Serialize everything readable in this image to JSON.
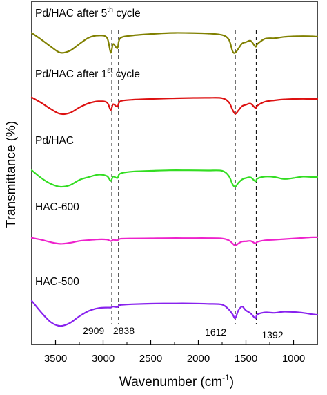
{
  "chart_data": {
    "type": "line",
    "xlabel": "Wavenumber (cm",
    "xlabel_sup": "-1",
    "xlabel_suffix": ")",
    "ylabel": "Transmittance (%)",
    "xlim": [
      3750,
      750
    ],
    "x_reversed": true,
    "x_ticks": [
      3500,
      3000,
      2500,
      2000,
      1500,
      1000
    ],
    "y_ticks": false,
    "grid": false,
    "legend": "none",
    "series": [
      {
        "label_parts": [
          "Pd/HAC after 5",
          "th",
          " cycle"
        ],
        "color": "#808000",
        "offset": 0,
        "points": [
          [
            3750,
            0.2
          ],
          [
            3650,
            0.45
          ],
          [
            3550,
            0.72
          ],
          [
            3450,
            0.95
          ],
          [
            3350,
            0.88
          ],
          [
            3250,
            0.62
          ],
          [
            3150,
            0.38
          ],
          [
            3050,
            0.3
          ],
          [
            2960,
            0.38
          ],
          [
            2920,
            0.95
          ],
          [
            2895,
            0.62
          ],
          [
            2850,
            0.78
          ],
          [
            2820,
            0.4
          ],
          [
            2700,
            0.3
          ],
          [
            2500,
            0.24
          ],
          [
            2300,
            0.2
          ],
          [
            2100,
            0.2
          ],
          [
            1900,
            0.22
          ],
          [
            1750,
            0.28
          ],
          [
            1680,
            0.45
          ],
          [
            1640,
            0.9
          ],
          [
            1612,
            0.95
          ],
          [
            1580,
            0.8
          ],
          [
            1540,
            0.6
          ],
          [
            1500,
            0.55
          ],
          [
            1450,
            0.5
          ],
          [
            1400,
            0.72
          ],
          [
            1380,
            0.62
          ],
          [
            1300,
            0.42
          ],
          [
            1200,
            0.4
          ],
          [
            1100,
            0.35
          ],
          [
            1000,
            0.33
          ],
          [
            900,
            0.32
          ],
          [
            800,
            0.33
          ],
          [
            750,
            0.34
          ]
        ]
      },
      {
        "label_parts": [
          "Pd/HAC after 1",
          "st",
          " cycle"
        ],
        "color": "#dd1111",
        "offset": 1,
        "points": [
          [
            3750,
            0.1
          ],
          [
            3650,
            0.38
          ],
          [
            3550,
            0.7
          ],
          [
            3450,
            0.95
          ],
          [
            3350,
            0.9
          ],
          [
            3250,
            0.62
          ],
          [
            3150,
            0.4
          ],
          [
            3050,
            0.3
          ],
          [
            2960,
            0.36
          ],
          [
            2920,
            0.75
          ],
          [
            2895,
            0.45
          ],
          [
            2850,
            0.58
          ],
          [
            2820,
            0.3
          ],
          [
            2700,
            0.22
          ],
          [
            2500,
            0.18
          ],
          [
            2300,
            0.15
          ],
          [
            2100,
            0.13
          ],
          [
            1900,
            0.12
          ],
          [
            1750,
            0.14
          ],
          [
            1680,
            0.35
          ],
          [
            1640,
            0.75
          ],
          [
            1612,
            0.95
          ],
          [
            1580,
            0.78
          ],
          [
            1540,
            0.55
          ],
          [
            1500,
            0.48
          ],
          [
            1450,
            0.42
          ],
          [
            1400,
            0.65
          ],
          [
            1380,
            0.52
          ],
          [
            1300,
            0.32
          ],
          [
            1200,
            0.25
          ],
          [
            1100,
            0.2
          ],
          [
            1000,
            0.18
          ],
          [
            900,
            0.17
          ],
          [
            800,
            0.18
          ],
          [
            750,
            0.18
          ]
        ]
      },
      {
        "label_parts": [
          "Pd/HAC",
          "",
          ""
        ],
        "color": "#33dd22",
        "offset": 2,
        "points": [
          [
            3750,
            0.15
          ],
          [
            3650,
            0.55
          ],
          [
            3550,
            0.85
          ],
          [
            3450,
            1.0
          ],
          [
            3350,
            0.92
          ],
          [
            3250,
            0.65
          ],
          [
            3150,
            0.5
          ],
          [
            3050,
            0.38
          ],
          [
            2960,
            0.45
          ],
          [
            2920,
            0.7
          ],
          [
            2895,
            0.48
          ],
          [
            2850,
            0.55
          ],
          [
            2820,
            0.32
          ],
          [
            2700,
            0.22
          ],
          [
            2500,
            0.18
          ],
          [
            2300,
            0.15
          ],
          [
            2100,
            0.15
          ],
          [
            1900,
            0.16
          ],
          [
            1750,
            0.18
          ],
          [
            1680,
            0.45
          ],
          [
            1640,
            0.88
          ],
          [
            1612,
            1.0
          ],
          [
            1580,
            0.8
          ],
          [
            1540,
            0.62
          ],
          [
            1500,
            0.55
          ],
          [
            1450,
            0.52
          ],
          [
            1400,
            0.72
          ],
          [
            1380,
            0.58
          ],
          [
            1300,
            0.48
          ],
          [
            1200,
            0.5
          ],
          [
            1100,
            0.6
          ],
          [
            1000,
            0.55
          ],
          [
            900,
            0.48
          ],
          [
            800,
            0.5
          ],
          [
            750,
            0.5
          ]
        ]
      },
      {
        "label_parts": [
          "HAC-600",
          "",
          ""
        ],
        "color": "#ee22cc",
        "offset": 3,
        "points": [
          [
            3750,
            0.1
          ],
          [
            3650,
            0.25
          ],
          [
            3550,
            0.45
          ],
          [
            3450,
            0.58
          ],
          [
            3350,
            0.5
          ],
          [
            3250,
            0.35
          ],
          [
            3150,
            0.28
          ],
          [
            3050,
            0.22
          ],
          [
            2960,
            0.24
          ],
          [
            2920,
            0.36
          ],
          [
            2895,
            0.26
          ],
          [
            2850,
            0.3
          ],
          [
            2820,
            0.18
          ],
          [
            2700,
            0.15
          ],
          [
            2500,
            0.14
          ],
          [
            2300,
            0.12
          ],
          [
            2100,
            0.12
          ],
          [
            1900,
            0.12
          ],
          [
            1750,
            0.15
          ],
          [
            1680,
            0.3
          ],
          [
            1640,
            0.55
          ],
          [
            1612,
            0.72
          ],
          [
            1580,
            0.55
          ],
          [
            1540,
            0.4
          ],
          [
            1500,
            0.38
          ],
          [
            1450,
            0.35
          ],
          [
            1400,
            0.55
          ],
          [
            1380,
            0.42
          ],
          [
            1300,
            0.3
          ],
          [
            1200,
            0.25
          ],
          [
            1100,
            0.2
          ],
          [
            1000,
            0.15
          ],
          [
            900,
            0.1
          ],
          [
            800,
            0.05
          ],
          [
            750,
            0.05
          ]
        ]
      },
      {
        "label_parts": [
          "HAC-500",
          "",
          ""
        ],
        "color": "#8822ee",
        "offset": 4,
        "points": [
          [
            3750,
            0.1
          ],
          [
            3650,
            0.7
          ],
          [
            3550,
            1.2
          ],
          [
            3450,
            1.4
          ],
          [
            3350,
            1.25
          ],
          [
            3250,
            0.9
          ],
          [
            3150,
            0.62
          ],
          [
            3050,
            0.48
          ],
          [
            2960,
            0.45
          ],
          [
            2920,
            0.45
          ],
          [
            2895,
            0.4
          ],
          [
            2850,
            0.42
          ],
          [
            2820,
            0.32
          ],
          [
            2700,
            0.28
          ],
          [
            2500,
            0.25
          ],
          [
            2300,
            0.24
          ],
          [
            2100,
            0.24
          ],
          [
            1900,
            0.26
          ],
          [
            1750,
            0.3
          ],
          [
            1680,
            0.55
          ],
          [
            1640,
            0.8
          ],
          [
            1612,
            1.0
          ],
          [
            1580,
            0.6
          ],
          [
            1540,
            0.4
          ],
          [
            1500,
            0.6
          ],
          [
            1450,
            0.75
          ],
          [
            1400,
            1.0
          ],
          [
            1380,
            0.8
          ],
          [
            1300,
            0.7
          ],
          [
            1200,
            0.72
          ],
          [
            1100,
            0.66
          ],
          [
            1000,
            0.68
          ],
          [
            900,
            0.72
          ],
          [
            800,
            0.8
          ],
          [
            750,
            0.82
          ]
        ]
      }
    ],
    "reference_lines": [
      {
        "x": 2909,
        "label": "2909"
      },
      {
        "x": 2838,
        "label": "2838"
      },
      {
        "x": 1612,
        "label": "1612"
      },
      {
        "x": 1392,
        "label": "1392"
      }
    ]
  }
}
